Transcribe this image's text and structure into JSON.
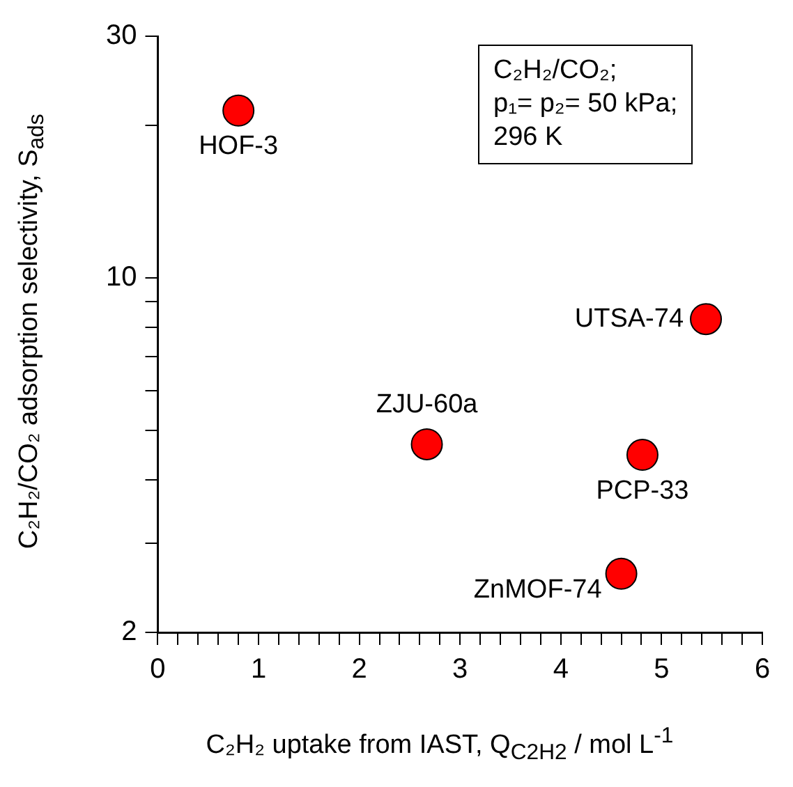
{
  "chart_data": {
    "type": "scatter",
    "xlabel": "C₂H₂ uptake from IAST, Q$_{C2H2}$ / mol L$^{-1}$",
    "ylabel": "C₂H₂/CO₂ adsorption selectivity, S$_{ads}$",
    "x": [
      0.8,
      5.44,
      2.67,
      4.81,
      4.6
    ],
    "series": [
      {
        "color": "#ff0000",
        "values": [
          21.4,
          8.3,
          4.7,
          4.48,
          2.61
        ]
      }
    ],
    "log": "y",
    "marker": "circle",
    "grid": false,
    "legend": false,
    "xlim": [
      0,
      6
    ],
    "xticks": [
      0,
      {
        "value": 0.2,
        "label": null
      },
      {
        "value": 0.4,
        "label": null
      },
      {
        "value": 0.6,
        "label": null
      },
      {
        "value": 0.8,
        "label": null
      },
      1,
      {
        "value": 1.2,
        "label": null
      },
      {
        "value": 1.4,
        "label": null
      },
      {
        "value": 1.6,
        "label": null
      },
      {
        "value": 1.8,
        "label": null
      },
      2,
      {
        "value": 2.2,
        "label": null
      },
      {
        "value": 2.4,
        "label": null
      },
      {
        "value": 2.6,
        "label": null
      },
      {
        "value": 2.8,
        "label": null
      },
      3,
      {
        "value": 3.2,
        "label": null
      },
      {
        "value": 3.4,
        "label": null
      },
      {
        "value": 3.6,
        "label": null
      },
      {
        "value": 3.8,
        "label": null
      },
      4,
      {
        "value": 4.2,
        "label": null
      },
      {
        "value": 4.4,
        "label": null
      },
      {
        "value": 4.6,
        "label": null
      },
      {
        "value": 4.8,
        "label": null
      },
      5,
      {
        "value": 5.2,
        "label": null
      },
      {
        "value": 5.4,
        "label": null
      },
      {
        "value": 5.6,
        "label": null
      },
      {
        "value": 5.8,
        "label": null
      },
      6
    ],
    "ylim": [
      2,
      30
    ],
    "yticks": [
      2,
      {
        "value": 3,
        "label": null
      },
      {
        "value": 4,
        "label": null
      },
      {
        "value": 5,
        "label": null
      },
      {
        "value": 6,
        "label": null
      },
      {
        "value": 7,
        "label": null
      },
      {
        "value": 8,
        "label": null
      },
      {
        "value": 9,
        "label": null
      },
      10,
      {
        "value": 20,
        "label": null
      },
      30
    ],
    "annotations": [
      {
        "text": "HOF-3",
        "x": 0.8,
        "y": 21.4
      },
      {
        "text": "UTSA-74",
        "x": 5.44,
        "y": 8.3
      },
      {
        "text": "ZJU-60a",
        "x": 2.67,
        "y": 4.7
      },
      {
        "text": "PCP-33",
        "x": 4.81,
        "y": 4.48
      },
      {
        "text": "ZnMOF-74",
        "x": 4.6,
        "y": 2.61
      },
      "C₂H₂/CO₂;",
      "p₁= p₂= 50 kPa;",
      "296 K"
    ]
  }
}
